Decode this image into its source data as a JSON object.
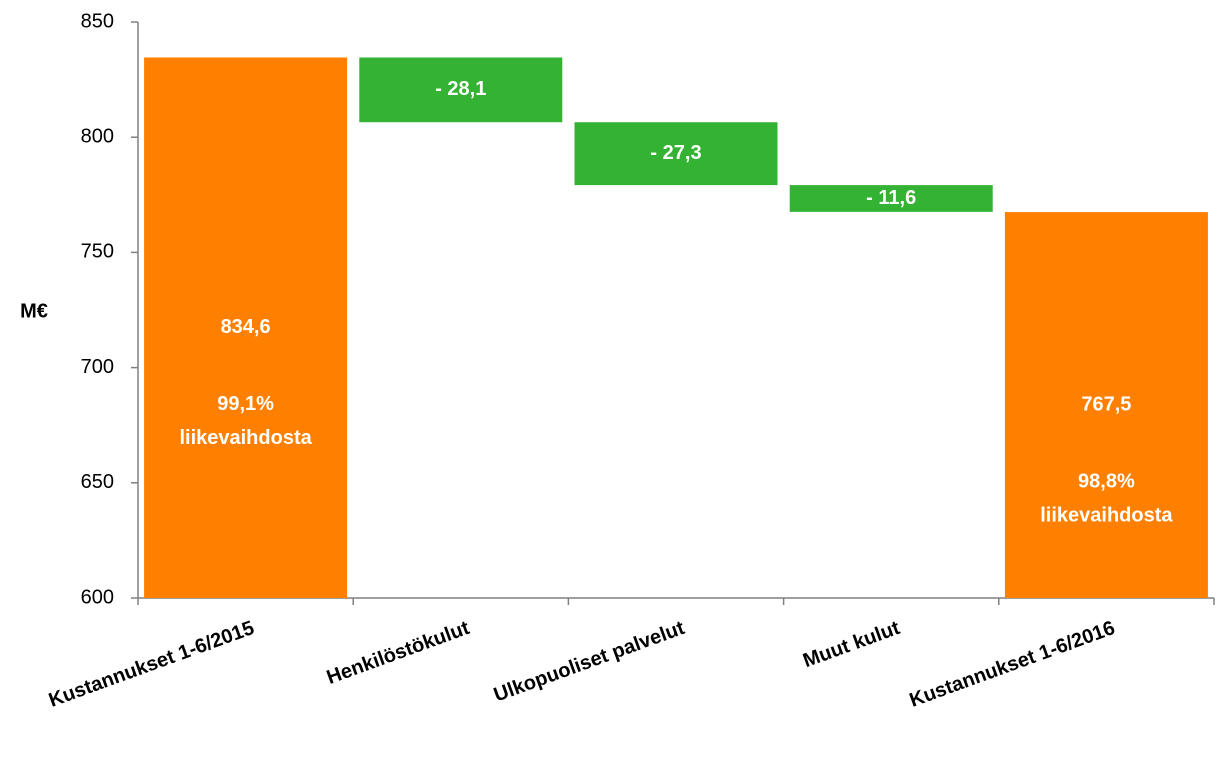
{
  "chart_data": {
    "type": "waterfall",
    "y_label": "M€",
    "categories": [
      "Kustannukset 1-6/2015",
      "Henkilöstökulut",
      "Ulkopuoliset palvelut",
      "Muut kulut",
      "Kustannukset 1-6/2016"
    ],
    "values": [
      834.6,
      -28.1,
      -27.3,
      -11.6,
      767.5
    ],
    "value_labels": [
      "834,6",
      "- 28,1",
      "- 27,3",
      "- 11,6",
      "767,5"
    ],
    "measure": [
      "absolute",
      "relative",
      "relative",
      "relative",
      "absolute"
    ],
    "bar_notes": [
      [
        "99,1%",
        "liikevaihdosta"
      ],
      null,
      null,
      null,
      [
        "98,8%",
        "liikevaihdosta"
      ]
    ],
    "colors": {
      "absolute": "#ff8000",
      "relative": "#33b233"
    },
    "ylim": [
      600,
      850
    ],
    "yticks": [
      600,
      650,
      700,
      750,
      800,
      850
    ],
    "grid": false
  }
}
